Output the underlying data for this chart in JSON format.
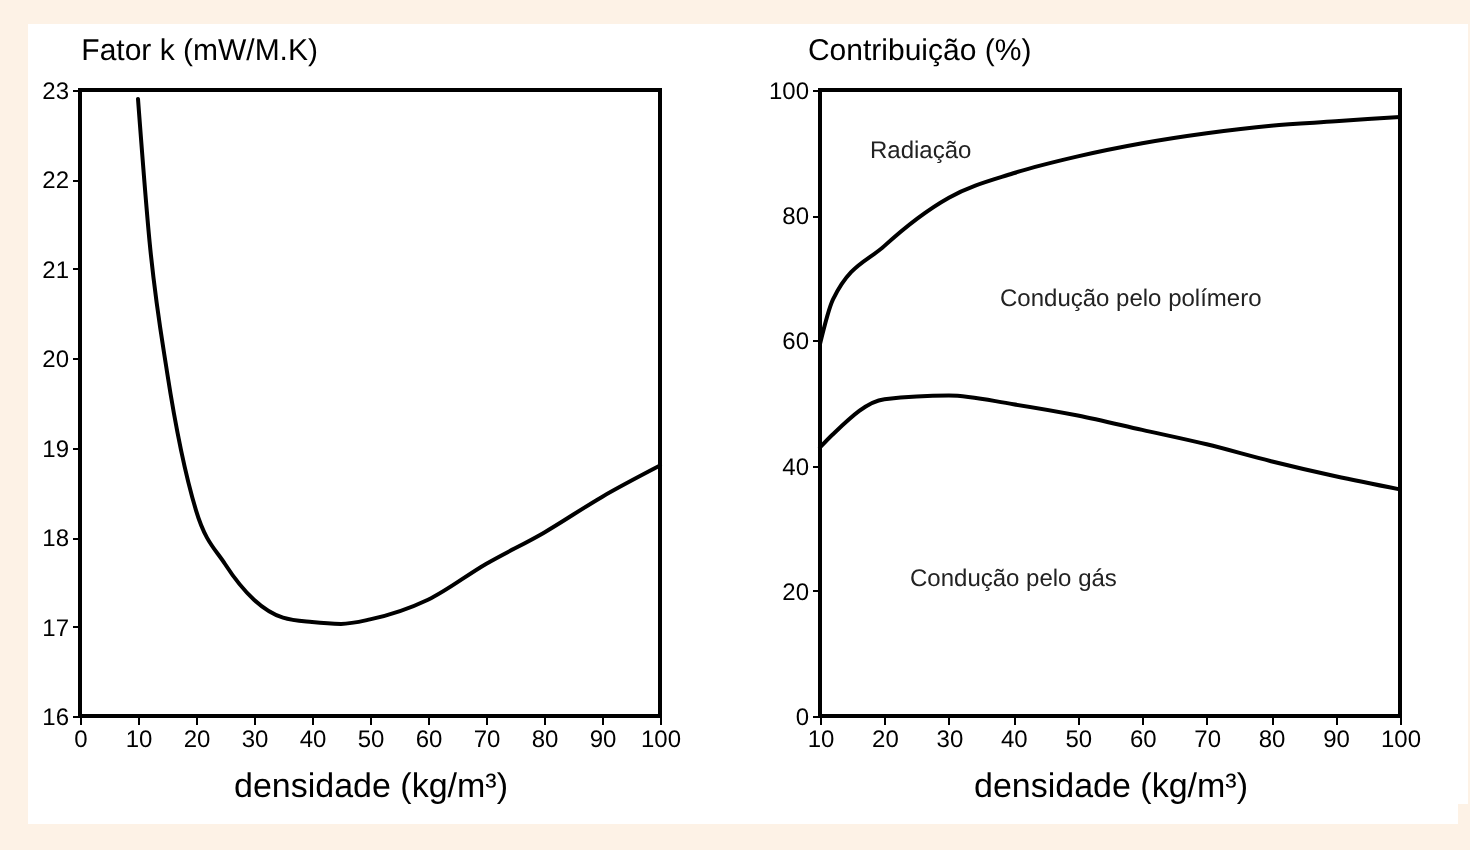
{
  "chart_data": [
    {
      "type": "line",
      "title": "Fator k (mW/M.K)",
      "xlabel": "densidade (kg/m³)",
      "x": [
        10,
        12,
        15,
        20,
        25,
        30,
        35,
        40,
        45,
        50,
        60,
        70,
        80,
        90,
        100
      ],
      "series": [
        {
          "color": "#000000",
          "values": [
            22.9,
            21.3,
            19.85,
            18.3,
            17.7,
            17.3,
            17.1,
            17.05,
            17.03,
            17.08,
            17.3,
            17.7,
            18.05,
            18.45,
            18.8
          ]
        }
      ],
      "xlim": [
        0,
        100
      ],
      "xticks": [
        0,
        10,
        20,
        30,
        40,
        50,
        60,
        70,
        80,
        90,
        100
      ],
      "ylim": [
        16,
        23
      ],
      "yticks": [
        16,
        17,
        18,
        19,
        20,
        21,
        22,
        23
      ],
      "grid": false,
      "legend": false,
      "marker": "none",
      "line_style": "solid"
    },
    {
      "type": "line",
      "title": "Contribuição (%)",
      "xlabel": "densidade (kg/m³)",
      "x": [
        10,
        12,
        20,
        30,
        40,
        50,
        60,
        70,
        80,
        90,
        100
      ],
      "series": [
        {
          "color": "#000000",
          "values": [
            59.4,
            66.5,
            75.1,
            82.8,
            86.7,
            89.4,
            91.5,
            93.1,
            94.3,
            95,
            95.7
          ]
        },
        {
          "color": "#000000",
          "values": [
            42.9,
            45,
            50.6,
            51.2,
            49.8,
            48,
            45.7,
            43.4,
            40.7,
            38.3,
            36.2
          ]
        }
      ],
      "xlim": [
        10,
        100
      ],
      "xticks": [
        10,
        20,
        30,
        40,
        50,
        60,
        70,
        80,
        90,
        100
      ],
      "ylim": [
        0,
        100
      ],
      "yticks": [
        0,
        20,
        40,
        60,
        80,
        100
      ],
      "grid": false,
      "legend": false,
      "marker": "none",
      "line_style": "solid",
      "annotations": [
        "Radiação",
        "Condução pelo polímero",
        "Condução pelo gás"
      ]
    }
  ]
}
